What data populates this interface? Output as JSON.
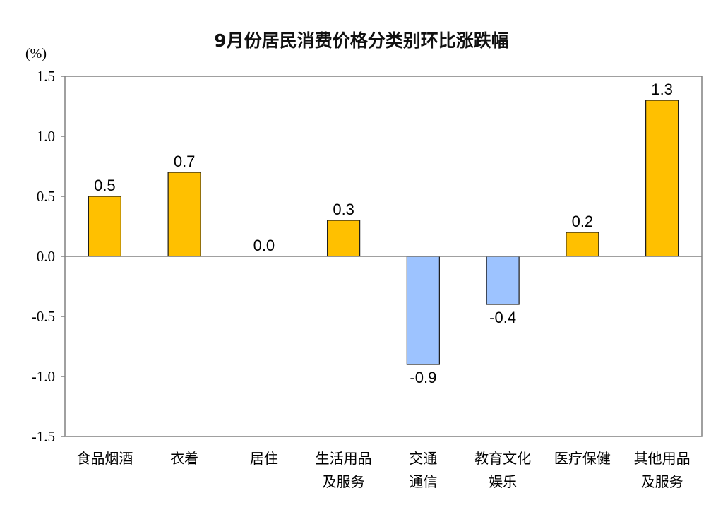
{
  "chart_data": {
    "type": "bar",
    "title": "9月份居民消费价格分类别环比涨跌幅",
    "unit": "(%)",
    "categories": [
      [
        "食品烟酒"
      ],
      [
        "衣着"
      ],
      [
        "居住"
      ],
      [
        "生活用品",
        "及服务"
      ],
      [
        "交通",
        "通信"
      ],
      [
        "教育文化",
        "娱乐"
      ],
      [
        "医疗保健"
      ],
      [
        "其他用品",
        "及服务"
      ]
    ],
    "values": [
      0.5,
      0.7,
      0.0,
      0.3,
      -0.9,
      -0.4,
      0.2,
      1.3
    ],
    "value_labels": [
      "0.5",
      "0.7",
      "0.0",
      "0.3",
      "-0.9",
      "-0.4",
      "0.2",
      "1.3"
    ],
    "ylim": [
      -1.5,
      1.5
    ],
    "yticks": [
      1.5,
      1.0,
      0.5,
      0.0,
      -0.5,
      -1.0,
      -1.5
    ],
    "ytick_labels": [
      "1.5",
      "1.0",
      "0.5",
      "0.0",
      "-0.5",
      "-1.0",
      "-1.5"
    ],
    "grid": false,
    "colors": {
      "positive": "#FFC000",
      "negative": "#9DC3FF",
      "bar_edge": "#1a1a1a",
      "axis": "#808080"
    }
  }
}
